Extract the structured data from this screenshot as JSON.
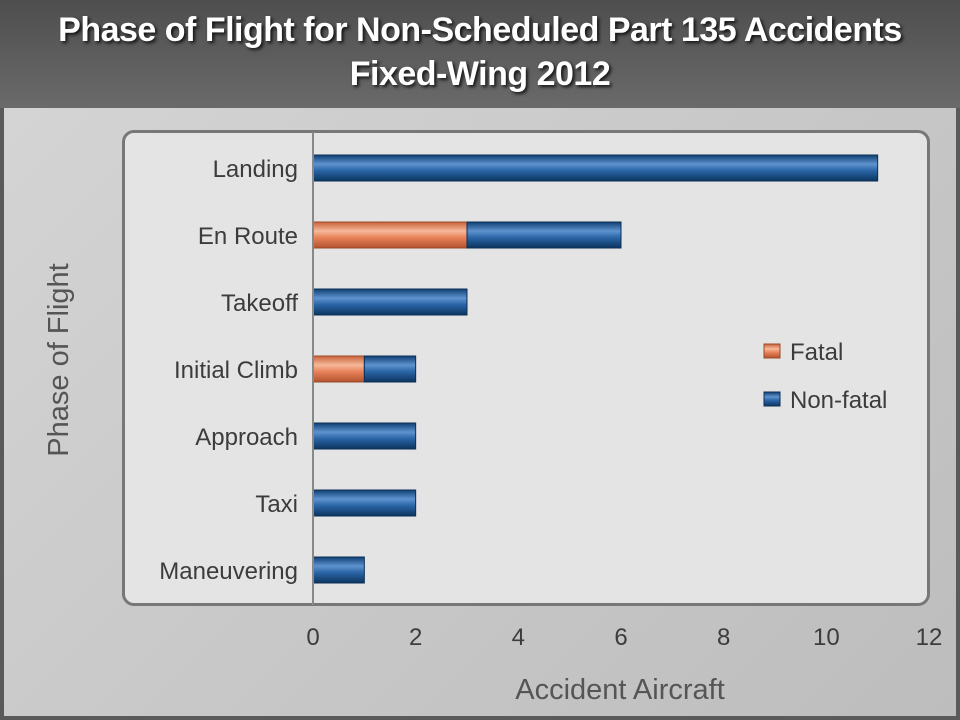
{
  "chart_data": {
    "type": "bar",
    "orientation": "horizontal",
    "stacked": true,
    "title": "Phase of Flight for Non-Scheduled Part 135 Accidents",
    "subtitle": "Fixed-Wing 2012",
    "xlabel": "Accident Aircraft",
    "ylabel": "Phase of Flight",
    "xlim": [
      0,
      12
    ],
    "xticks": [
      "0",
      "2",
      "4",
      "6",
      "8",
      "10",
      "12"
    ],
    "categories": [
      "Landing",
      "En Route",
      "Takeoff",
      "Initial Climb",
      "Approach",
      "Taxi",
      "Maneuvering"
    ],
    "series": [
      {
        "name": "Fatal",
        "values": [
          0,
          3,
          0,
          1,
          0,
          0,
          0
        ],
        "color": "#e8825a"
      },
      {
        "name": "Non-fatal",
        "values": [
          11,
          3,
          3,
          1,
          2,
          2,
          1
        ],
        "color": "#1f5a99"
      }
    ],
    "legend_position": "right",
    "grid": false
  }
}
